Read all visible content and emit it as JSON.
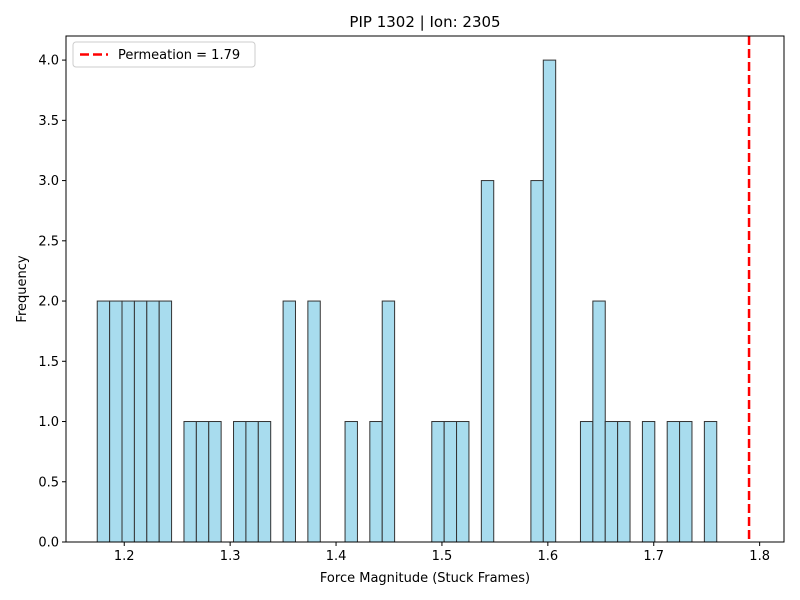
{
  "chart_data": {
    "type": "bar",
    "title": "PIP 1302 | Ion: 2305",
    "xlabel": "Force Magnitude (Stuck Frames)",
    "ylabel": "Frequency",
    "xlim": [
      1.145,
      1.823
    ],
    "ylim": [
      0,
      4.2
    ],
    "xticks": [
      1.2,
      1.3,
      1.4,
      1.5,
      1.6,
      1.7,
      1.8
    ],
    "xtick_labels": [
      "1.2",
      "1.3",
      "1.4",
      "1.5",
      "1.6",
      "1.7",
      "1.8"
    ],
    "yticks": [
      0,
      0.5,
      1,
      1.5,
      2,
      2.5,
      3,
      3.5,
      4
    ],
    "ytick_labels": [
      "0.0",
      "0.5",
      "1.0",
      "1.5",
      "2.0",
      "2.5",
      "3.0",
      "3.5",
      "4.0"
    ],
    "bin_width": 0.0117,
    "bins": [
      {
        "x0": 1.1745,
        "count": 2
      },
      {
        "x0": 1.1862,
        "count": 2
      },
      {
        "x0": 1.1979,
        "count": 2
      },
      {
        "x0": 1.2096,
        "count": 2
      },
      {
        "x0": 1.2213,
        "count": 2
      },
      {
        "x0": 1.233,
        "count": 2
      },
      {
        "x0": 1.2564,
        "count": 1
      },
      {
        "x0": 1.2681,
        "count": 1
      },
      {
        "x0": 1.2798,
        "count": 1
      },
      {
        "x0": 1.3032,
        "count": 1
      },
      {
        "x0": 1.3149,
        "count": 1
      },
      {
        "x0": 1.3266,
        "count": 1
      },
      {
        "x0": 1.35,
        "count": 2
      },
      {
        "x0": 1.3734,
        "count": 2
      },
      {
        "x0": 1.4085,
        "count": 1
      },
      {
        "x0": 1.4319,
        "count": 1
      },
      {
        "x0": 1.4436,
        "count": 2
      },
      {
        "x0": 1.4904,
        "count": 1
      },
      {
        "x0": 1.5021,
        "count": 1
      },
      {
        "x0": 1.5138,
        "count": 1
      },
      {
        "x0": 1.5372,
        "count": 3
      },
      {
        "x0": 1.584,
        "count": 3
      },
      {
        "x0": 1.5957,
        "count": 4
      },
      {
        "x0": 1.6308,
        "count": 1
      },
      {
        "x0": 1.6425,
        "count": 2
      },
      {
        "x0": 1.6542,
        "count": 1
      },
      {
        "x0": 1.6659,
        "count": 1
      },
      {
        "x0": 1.6893,
        "count": 1
      },
      {
        "x0": 1.7127,
        "count": 1
      },
      {
        "x0": 1.7244,
        "count": 1
      },
      {
        "x0": 1.7478,
        "count": 1
      }
    ],
    "reference_line": {
      "x": 1.79,
      "label": "Permeation = 1.79",
      "color": "#ff0000",
      "style": "dashed"
    },
    "legend_position": "top-left",
    "grid": false,
    "bar_color": "#a8dcee",
    "bar_edge_color": "#333333"
  }
}
